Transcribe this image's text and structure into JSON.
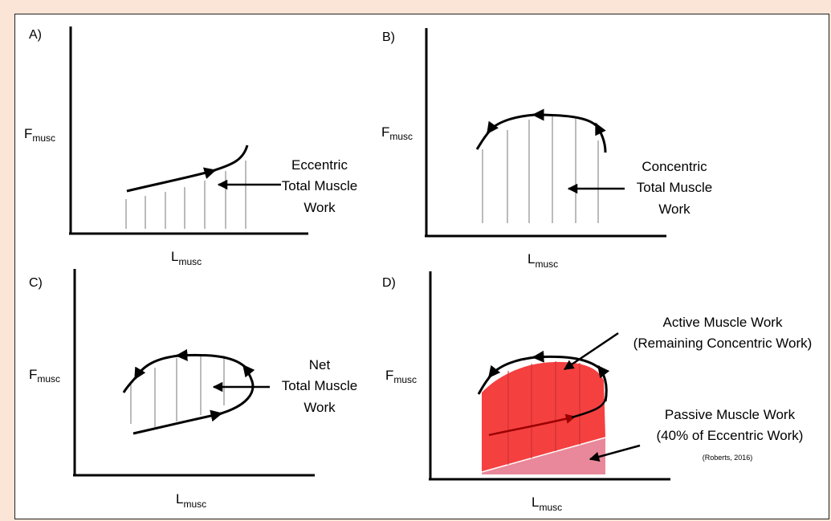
{
  "panels": {
    "a": {
      "letter": "A)",
      "y_label": "F",
      "y_sub": "musc",
      "x_label": "L",
      "x_sub": "musc",
      "annotation": [
        "Eccentric",
        "Total Muscle",
        "Work"
      ]
    },
    "b": {
      "letter": "B)",
      "y_label": "F",
      "y_sub": "musc",
      "x_label": "L",
      "x_sub": "musc",
      "annotation": [
        "Concentric",
        "Total Muscle",
        "Work"
      ]
    },
    "c": {
      "letter": "C)",
      "y_label": "F",
      "y_sub": "musc",
      "x_label": "L",
      "x_sub": "musc",
      "annotation": [
        "Net",
        "Total Muscle",
        "Work"
      ]
    },
    "d": {
      "letter": "D)",
      "y_label": "F",
      "y_sub": "musc",
      "x_label": "L",
      "x_sub": "musc",
      "active_annotation": [
        "Active Muscle Work",
        "(Remaining Concentric Work)"
      ],
      "passive_annotation": [
        "Passive Muscle Work",
        "(40% of Eccentric Work)"
      ],
      "citation": "(Roberts, 2016)",
      "active_color": "#f54040",
      "passive_color": "#e8889a"
    }
  }
}
